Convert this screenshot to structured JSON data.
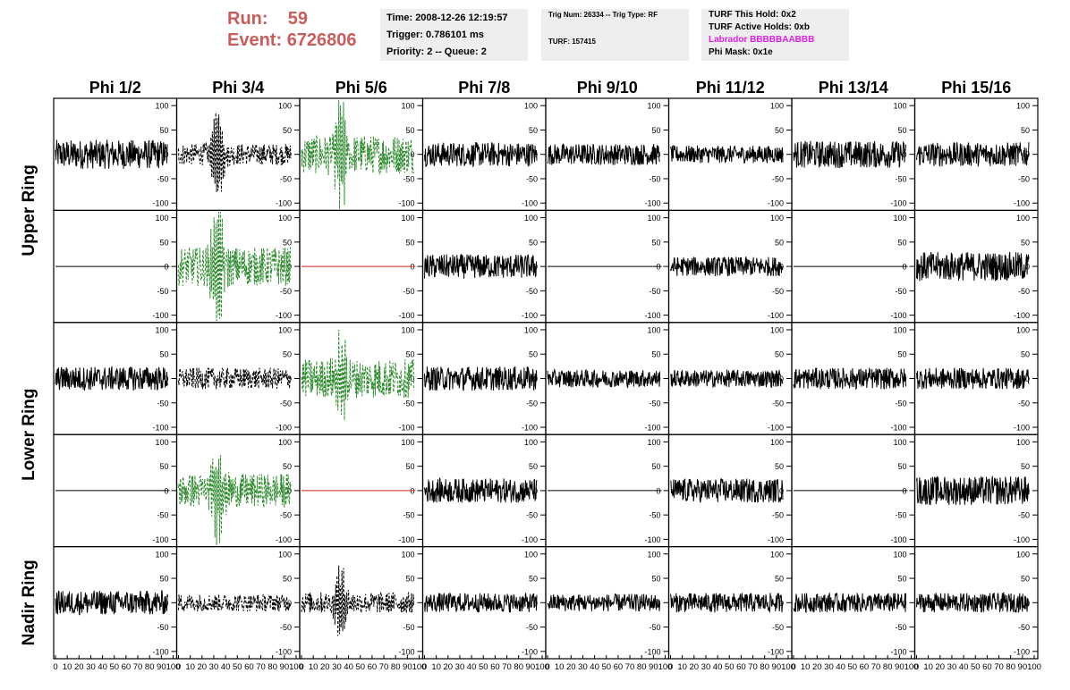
{
  "header": {
    "run_label": "Run:",
    "run_value": "59",
    "event_label": "Event:",
    "event_value": "6726806",
    "time": "Time: 2008-12-26 12:19:57",
    "trigger": "Trigger: 0.786101 ms",
    "priority": "Priority: 2 -- Queue: 2",
    "trig_num": "Trig Num: 26334 -- Trig Type: RF",
    "turf": "TURF: 157415",
    "turf_hold": "TURF This Hold: 0x2",
    "turf_active": "TURF Active Holds: 0xb",
    "labrador": "Labrador BBBBBAABBB",
    "phi_mask": "Phi Mask: 0x1e"
  },
  "colors": {
    "accent": "#cc5c5c",
    "magenta": "#e020e0",
    "green": "#2e8b2e",
    "red": "#cc2222"
  },
  "chart_data": {
    "type": "line",
    "title": "",
    "columns": [
      "Phi 1/2",
      "Phi 3/4",
      "Phi 5/6",
      "Phi 7/8",
      "Phi 9/10",
      "Phi 11/12",
      "Phi 13/14",
      "Phi 15/16"
    ],
    "row_groups": [
      {
        "label": "Upper Ring",
        "rows": [
          0,
          1
        ]
      },
      {
        "label": "Lower Ring",
        "rows": [
          2,
          3
        ]
      },
      {
        "label": "Nadir Ring",
        "rows": [
          4
        ]
      }
    ],
    "ylim": [
      -115,
      115
    ],
    "xlim": [
      0,
      100
    ],
    "y_ticks": [
      "100",
      "50",
      "0",
      "-50",
      "-100"
    ],
    "x_ticks": [
      "0",
      "10",
      "20",
      "30",
      "40",
      "50",
      "60",
      "70",
      "80",
      "90",
      "100"
    ],
    "panels": [
      [
        {
          "style": "solid",
          "color": "#000000",
          "amp": 30,
          "peak": 0
        },
        {
          "style": "dashed",
          "color": "#000000",
          "amp": 22,
          "peak": 80
        },
        {
          "style": "dashed",
          "color": "#2e8b2e",
          "amp": 40,
          "peak": 105
        },
        {
          "style": "solid",
          "color": "#000000",
          "amp": 25,
          "peak": 0
        },
        {
          "style": "solid",
          "color": "#000000",
          "amp": 22,
          "peak": 0
        },
        {
          "style": "solid",
          "color": "#000000",
          "amp": 18,
          "peak": 0
        },
        {
          "style": "solid",
          "color": "#000000",
          "amp": 28,
          "peak": 0
        },
        {
          "style": "solid",
          "color": "#000000",
          "amp": 25,
          "peak": 0
        }
      ],
      [
        {
          "style": "flat",
          "color": "#000000",
          "amp": 0,
          "peak": 0
        },
        {
          "style": "dashed",
          "color": "#2e8b2e",
          "amp": 40,
          "peak": 110
        },
        {
          "style": "flat",
          "color": "#cc2222",
          "amp": 0,
          "peak": 0
        },
        {
          "style": "solid",
          "color": "#000000",
          "amp": 25,
          "peak": 0
        },
        {
          "style": "flat",
          "color": "#000000",
          "amp": 0,
          "peak": 0
        },
        {
          "style": "solid",
          "color": "#000000",
          "amp": 20,
          "peak": 0
        },
        {
          "style": "flat",
          "color": "#000000",
          "amp": 0,
          "peak": 0
        },
        {
          "style": "solid",
          "color": "#000000",
          "amp": 30,
          "peak": 0
        }
      ],
      [
        {
          "style": "solid",
          "color": "#000000",
          "amp": 25,
          "peak": 0
        },
        {
          "style": "dashed",
          "color": "#000000",
          "amp": 22,
          "peak": 0
        },
        {
          "style": "dashed",
          "color": "#2e8b2e",
          "amp": 40,
          "peak": 80
        },
        {
          "style": "solid",
          "color": "#000000",
          "amp": 25,
          "peak": 0
        },
        {
          "style": "solid",
          "color": "#000000",
          "amp": 18,
          "peak": 0
        },
        {
          "style": "solid",
          "color": "#000000",
          "amp": 18,
          "peak": 0
        },
        {
          "style": "solid",
          "color": "#000000",
          "amp": 22,
          "peak": 0
        },
        {
          "style": "solid",
          "color": "#000000",
          "amp": 22,
          "peak": 0
        }
      ],
      [
        {
          "style": "flat",
          "color": "#000000",
          "amp": 0,
          "peak": 0
        },
        {
          "style": "dashed",
          "color": "#2e8b2e",
          "amp": 35,
          "peak": 90
        },
        {
          "style": "flat",
          "color": "#cc2222",
          "amp": 0,
          "peak": 0
        },
        {
          "style": "solid",
          "color": "#000000",
          "amp": 25,
          "peak": 0
        },
        {
          "style": "flat",
          "color": "#000000",
          "amp": 0,
          "peak": 0
        },
        {
          "style": "solid",
          "color": "#000000",
          "amp": 25,
          "peak": 0
        },
        {
          "style": "flat",
          "color": "#000000",
          "amp": 0,
          "peak": 0
        },
        {
          "style": "solid",
          "color": "#000000",
          "amp": 30,
          "peak": 0
        }
      ],
      [
        {
          "style": "solid",
          "color": "#000000",
          "amp": 25,
          "peak": 0
        },
        {
          "style": "dashed",
          "color": "#000000",
          "amp": 18,
          "peak": 0
        },
        {
          "style": "dashed",
          "color": "#000000",
          "amp": 22,
          "peak": 60
        },
        {
          "style": "solid",
          "color": "#000000",
          "amp": 20,
          "peak": 0
        },
        {
          "style": "solid",
          "color": "#000000",
          "amp": 18,
          "peak": 0
        },
        {
          "style": "solid",
          "color": "#000000",
          "amp": 20,
          "peak": 0
        },
        {
          "style": "solid",
          "color": "#000000",
          "amp": 20,
          "peak": 0
        },
        {
          "style": "solid",
          "color": "#000000",
          "amp": 20,
          "peak": 0
        }
      ]
    ]
  }
}
